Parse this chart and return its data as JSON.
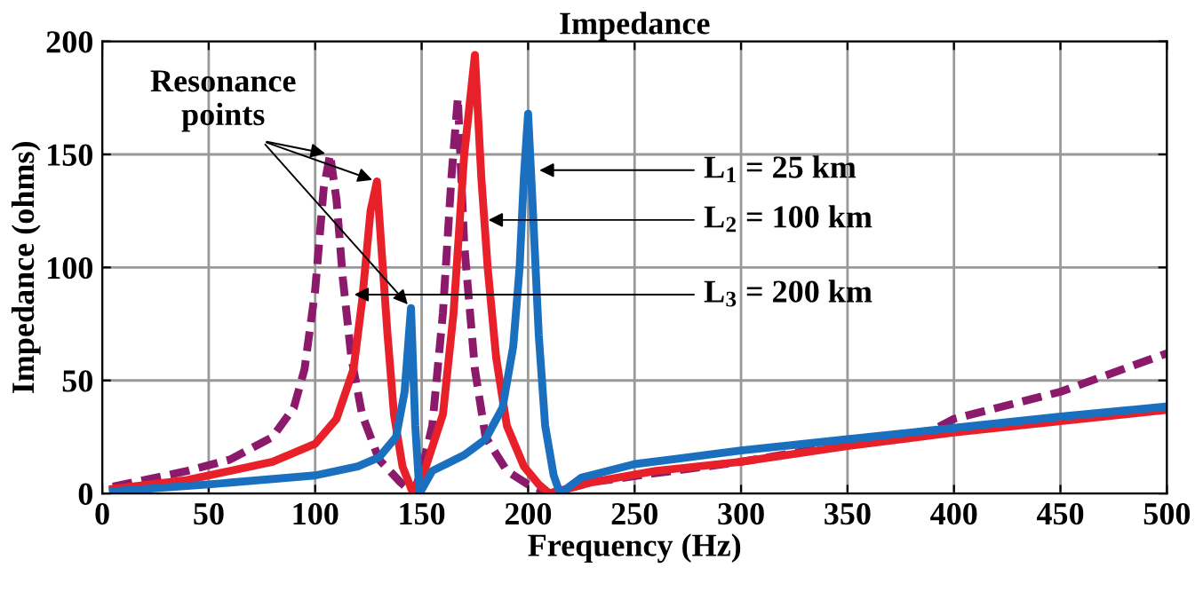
{
  "chart_data": {
    "type": "line",
    "title": "Impedance",
    "xlabel": "Frequency (Hz)",
    "ylabel": "Impedance (ohms)",
    "xlim": [
      0,
      500
    ],
    "xticks": [
      0,
      50,
      100,
      150,
      200,
      250,
      300,
      350,
      400,
      450,
      500
    ],
    "ylim": [
      0,
      200
    ],
    "yticks": [
      0,
      50,
      100,
      150,
      200
    ],
    "grid": true,
    "legend": false,
    "marker": "none",
    "series": [
      {
        "color": "#8b1a6b",
        "line_style": "dashed",
        "x": [
          5,
          20,
          40,
          60,
          80,
          90,
          95,
          100,
          104,
          107,
          110,
          113,
          117,
          122,
          130,
          140,
          146,
          150,
          155,
          160,
          164,
          167,
          170,
          175,
          180,
          190,
          200,
          210,
          230,
          260,
          300,
          350,
          390,
          400,
          450,
          500
        ],
        "values": [
          3,
          6,
          10,
          15,
          25,
          38,
          55,
          90,
          135,
          150,
          130,
          95,
          60,
          35,
          15,
          5,
          0,
          10,
          30,
          80,
          140,
          175,
          110,
          55,
          25,
          10,
          4,
          0,
          5,
          9,
          14,
          22,
          28,
          33,
          45,
          62
        ]
      },
      {
        "color": "#e8202a",
        "line_style": "solid",
        "x": [
          5,
          40,
          80,
          100,
          110,
          118,
          122,
          126,
          129,
          131,
          134,
          137,
          141,
          146,
          152,
          160,
          165,
          170,
          175,
          178,
          181,
          185,
          190,
          198,
          205,
          210,
          230,
          260,
          300,
          350,
          400,
          450,
          500
        ],
        "values": [
          2,
          6,
          14,
          22,
          33,
          55,
          85,
          125,
          138,
          110,
          70,
          35,
          12,
          0,
          12,
          35,
          80,
          150,
          194,
          140,
          100,
          60,
          30,
          12,
          4,
          0,
          5,
          10,
          14,
          21,
          27,
          32,
          37
        ]
      },
      {
        "color": "#1a6fbf",
        "line_style": "solid",
        "x": [
          5,
          50,
          100,
          120,
          130,
          138,
          142,
          144,
          145,
          147,
          149,
          155,
          170,
          180,
          188,
          193,
          196,
          198,
          200,
          202,
          205,
          208,
          212,
          215,
          225,
          250,
          300,
          350,
          400,
          450,
          500
        ],
        "values": [
          1,
          4,
          8,
          12,
          16,
          25,
          45,
          70,
          82,
          30,
          0,
          10,
          17,
          24,
          38,
          65,
          100,
          140,
          168,
          130,
          70,
          30,
          8,
          0,
          7,
          13,
          19,
          24,
          29,
          34,
          38.5
        ]
      }
    ],
    "annotations": [
      {
        "text": "Resonance points",
        "x": 107,
        "y": 150
      },
      {
        "text": "L$_{1}$ = 25 km",
        "x": 203,
        "y": 143
      },
      {
        "text": "L$_{2}$ = 100 km",
        "x": 179,
        "y": 121
      },
      {
        "text": "L$_{3}$ = 200 km",
        "x": 116,
        "y": 88
      }
    ]
  }
}
